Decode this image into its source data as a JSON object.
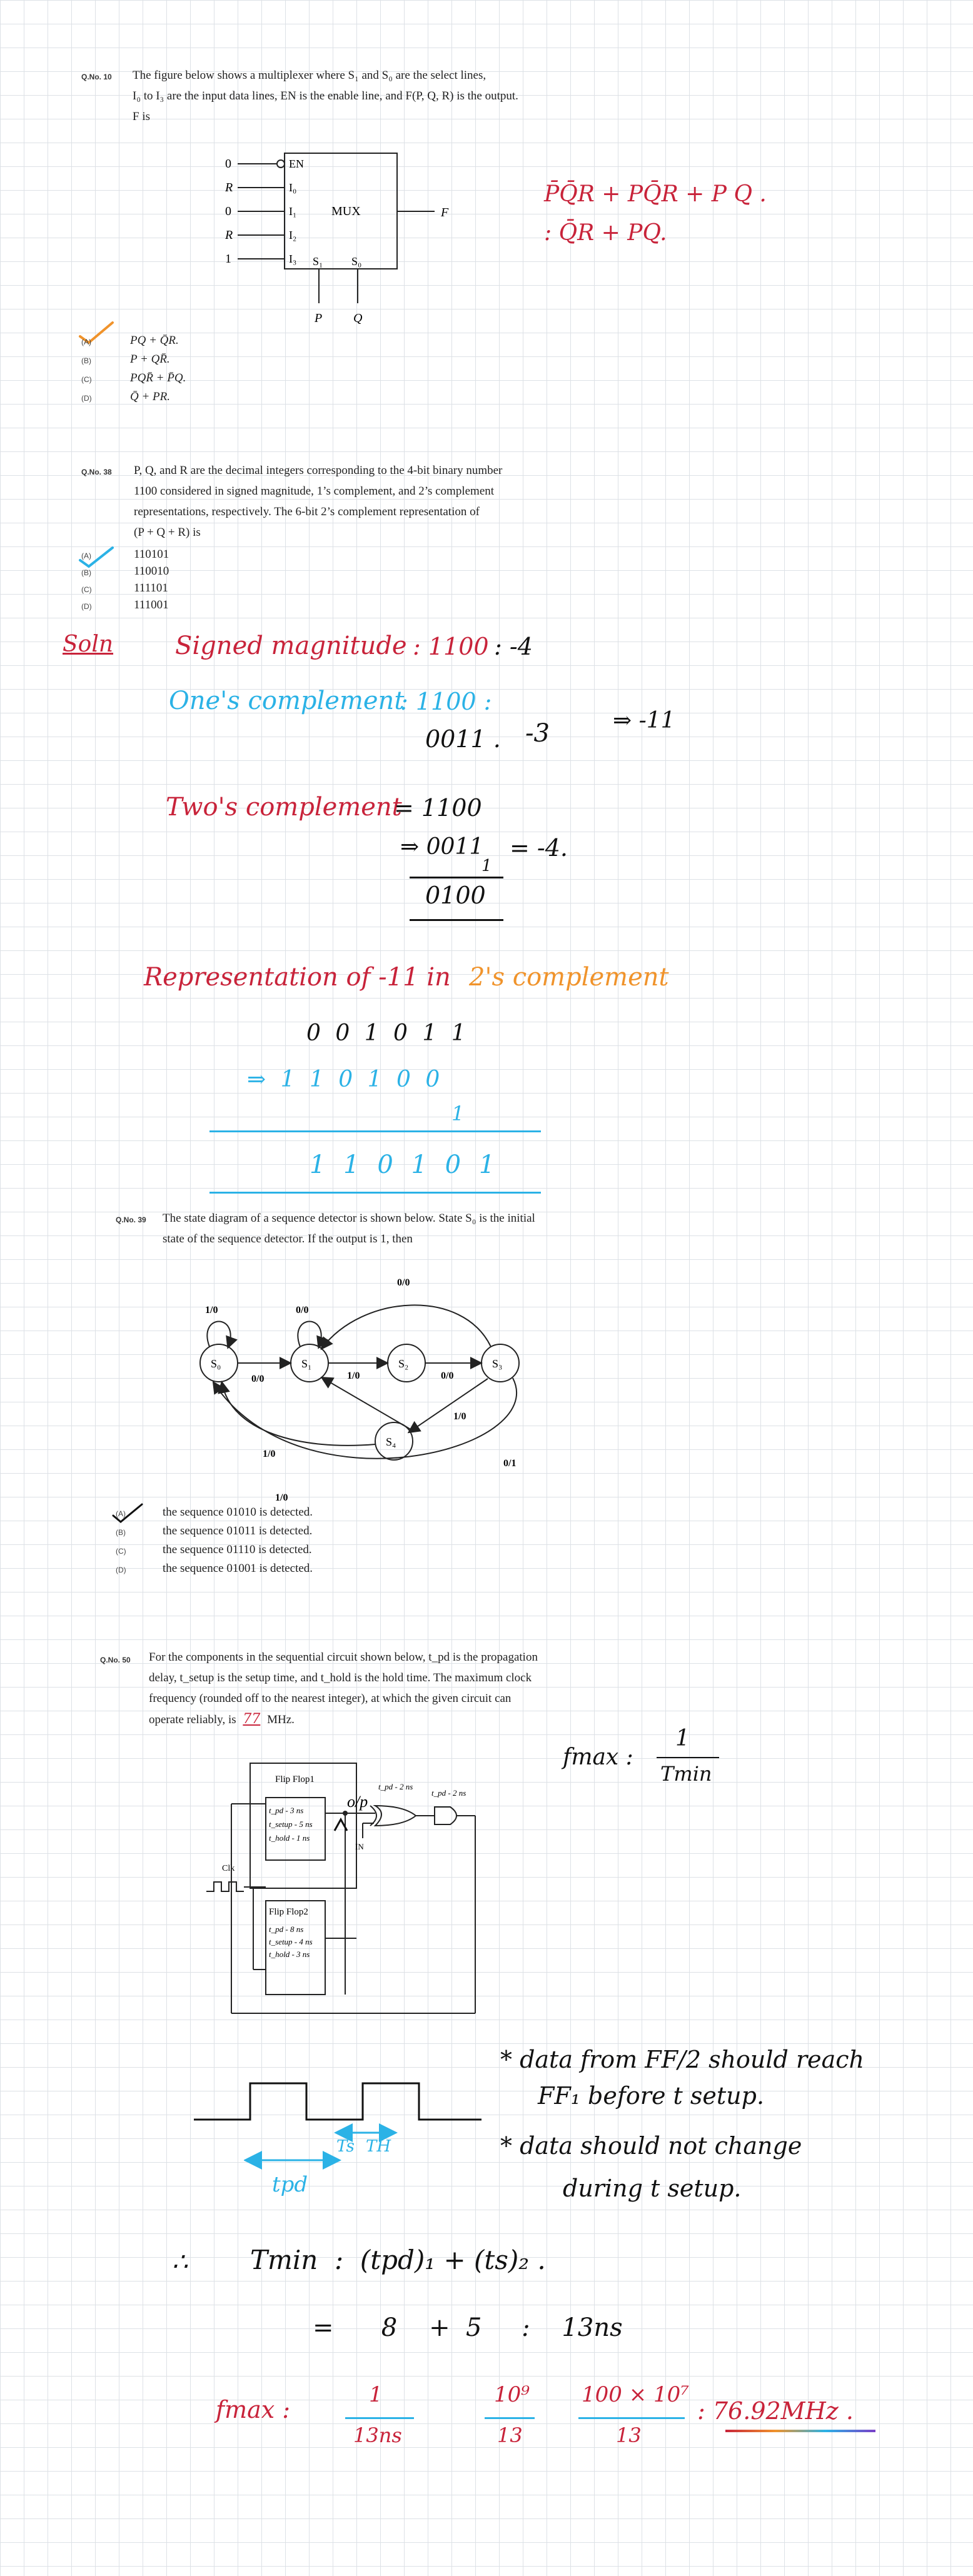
{
  "q1": {
    "number": "Q.No. 10",
    "text_lines": [
      "The figure below shows a multiplexer where S₁ and S₀ are the select lines,",
      "I₀ to I₃ are the input data lines, EN is the enable line, and F(P, Q, R) is the output.",
      "F is"
    ],
    "mux": {
      "label": "MUX",
      "en": "EN",
      "inputs": [
        "I₀",
        "I₁",
        "I₂",
        "I₃"
      ],
      "input_values": [
        "R",
        "0",
        "R",
        "1"
      ],
      "en_value": "0",
      "selects": [
        "S₁",
        "S₀"
      ],
      "select_inputs": [
        "P",
        "Q"
      ],
      "output": "F"
    },
    "options": [
      {
        "letter": "(A)",
        "text": "PQ + Q̄R."
      },
      {
        "letter": "(B)",
        "text": "P + QR̄."
      },
      {
        "letter": "(C)",
        "text": "PQR̄ + P̄Q."
      },
      {
        "letter": "(D)",
        "text": "Q̄ + PR."
      }
    ],
    "note_line1": "P̄Q̄R + PQ̄R + P Q .",
    "note_line2": ": Q̄R + PQ."
  },
  "q2": {
    "number": "Q.No. 38",
    "text_lines": [
      "P, Q, and R are the decimal integers corresponding to the 4-bit binary number",
      "1100 considered in signed magnitude, 1’s complement, and 2’s complement",
      "representations, respectively. The 6-bit 2’s complement representation of",
      "(P + Q + R) is"
    ],
    "options": [
      {
        "letter": "(A)",
        "text": "110101"
      },
      {
        "letter": "(B)",
        "text": "110010"
      },
      {
        "letter": "(C)",
        "text": "111101"
      },
      {
        "letter": "(D)",
        "text": "111001"
      }
    ],
    "solution": {
      "label": "Soln",
      "signed_label": "Signed magnitude",
      "signed_value": ": 1100",
      "signed_result": ":  -4",
      "ones_label": "One's complement",
      "ones_value": ": 1100 :",
      "ones_inv": "0011 .",
      "ones_result": "-3",
      "sum_result": "⇒  -11",
      "twos_label": "Two's complement",
      "twos_value": "= 1100",
      "twos_inv": "⇒ 0011",
      "twos_one": "1",
      "twos_result": "= -4.",
      "twos_sum": "0100",
      "rep_label": "Representation of -11 in",
      "rep_label2": "2's complement",
      "rep_bin": "0 0 1 0 1 1",
      "rep_inv": "⇒   1 1 0 1 0 0",
      "rep_one": "1",
      "rep_final": "1 1 0 1 0 1"
    }
  },
  "q3": {
    "number": "Q.No. 39",
    "text_lines": [
      "The state diagram of a sequence detector is shown below. State S₀ is the initial",
      "state of the sequence detector. If the output is 1, then"
    ],
    "states": [
      "S₀",
      "S₁",
      "S₂",
      "S₃",
      "S₄"
    ],
    "edge_labels": [
      "1/0",
      "0/0",
      "0/0",
      "1/0",
      "0/0",
      "0/0",
      "1/0",
      "1/0",
      "0/1",
      "1/0"
    ],
    "options": [
      {
        "letter": "(A)",
        "text": "the sequence 01010 is detected."
      },
      {
        "letter": "(B)",
        "text": "the sequence 01011 is detected."
      },
      {
        "letter": "(C)",
        "text": "the sequence 01110 is detected."
      },
      {
        "letter": "(D)",
        "text": "the sequence 01001 is detected."
      }
    ]
  },
  "q4": {
    "number": "Q.No. 50",
    "text_lines": [
      "For the components in the sequential circuit shown below, t_pd is the propagation",
      "delay, t_setup is the setup time, and t_hold is the hold time. The maximum clock",
      "frequency (rounded off to the nearest integer), at which the given circuit can",
      "operate reliably, is"
    ],
    "answer_blank": "77",
    "unit": "MHz.",
    "ff1": {
      "title": "Flip Flop1",
      "tpd": "t_pd - 3 ns",
      "tsetup": "t_setup - 5 ns",
      "thold": "t_hold - 1 ns"
    },
    "ff2": {
      "title": "Flip Flop2",
      "tpd": "t_pd - 8 ns",
      "tsetup": "t_setup - 4 ns",
      "thold": "t_hold - 3 ns"
    },
    "xor_tpd": "t_pd - 2 ns",
    "and_tpd": "t_pd - 2 ns",
    "clk": "Clk",
    "in_label": "IN",
    "op_note": "o/p",
    "fmax_label": "fmax :",
    "fmax_num": "1",
    "fmax_den": "Tmin",
    "note1a": "* data from FF/2 should reach",
    "note1b": "FF₁ before t setup.",
    "note2a": "* data should not change",
    "note2b": "during t setup.",
    "ts_label": "Ts",
    "th_label": "TH",
    "tpd_label": "tpd",
    "therefore": "∴",
    "tmin_eq": "Tmin  :  (tpd)₁ + (ts)₂ .",
    "tmin_val": "=      8    +  5     :    13ns",
    "final_label": "fmax :",
    "f_frac1_num": "1",
    "f_frac1_den": "13ns",
    "f_frac2_num": "10⁹",
    "f_frac2_den": "13",
    "f_frac3_num": "100 × 10⁷",
    "f_frac3_den": "13",
    "f_result": ": 76.92MHz ."
  },
  "colors": {
    "red": "#c8233a",
    "blue": "#2bb2e6",
    "orange": "#f0932b",
    "grid": "#dde1e6"
  }
}
